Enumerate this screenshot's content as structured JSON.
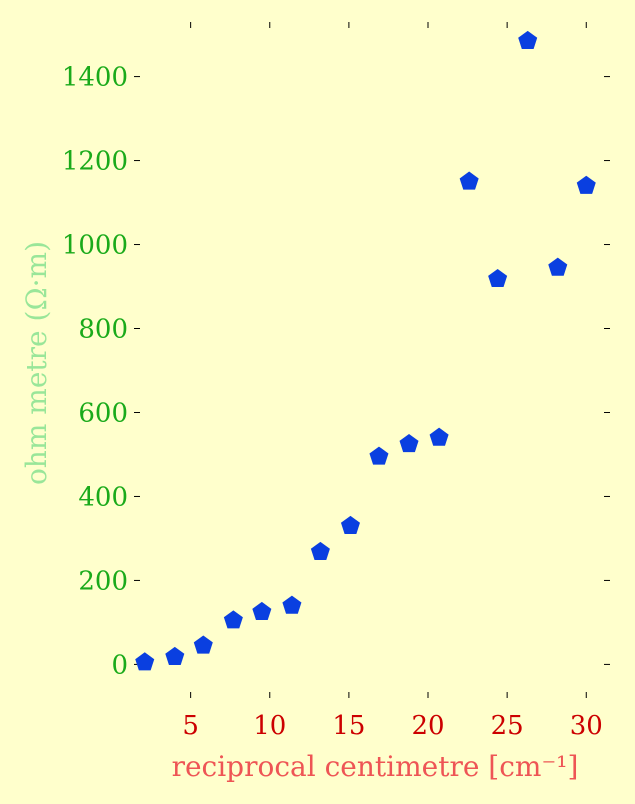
{
  "chart_data": {
    "type": "scatter",
    "xlabel": "reciprocal centimetre [cm⁻¹]",
    "ylabel": "ohm metre (Ω·m)",
    "xlim": [
      1.8,
      31.5
    ],
    "ylim": [
      -80,
      1530
    ],
    "xticks": [
      5,
      10,
      15,
      20,
      25,
      30
    ],
    "yticks": [
      0,
      200,
      400,
      600,
      800,
      1000,
      1200,
      1400
    ],
    "marker": "pentagon",
    "grid": false,
    "series": [
      {
        "color": "#0a3fe0",
        "points": [
          {
            "x": 2.1,
            "y": 5
          },
          {
            "x": 4.0,
            "y": 18
          },
          {
            "x": 5.8,
            "y": 45
          },
          {
            "x": 7.7,
            "y": 105
          },
          {
            "x": 9.5,
            "y": 125
          },
          {
            "x": 11.4,
            "y": 140
          },
          {
            "x": 13.2,
            "y": 268
          },
          {
            "x": 15.1,
            "y": 330
          },
          {
            "x": 16.9,
            "y": 495
          },
          {
            "x": 18.8,
            "y": 525
          },
          {
            "x": 20.7,
            "y": 540
          },
          {
            "x": 22.6,
            "y": 1150
          },
          {
            "x": 24.4,
            "y": 918
          },
          {
            "x": 26.3,
            "y": 1485
          },
          {
            "x": 28.2,
            "y": 945
          },
          {
            "x": 30.0,
            "y": 1140
          }
        ]
      }
    ]
  }
}
